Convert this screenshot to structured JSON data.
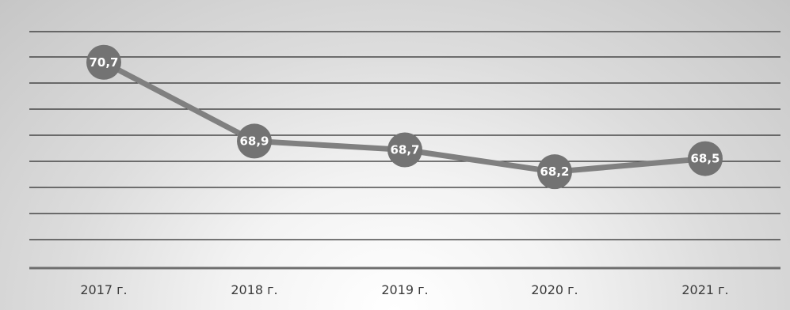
{
  "chart_data": {
    "type": "line",
    "categories": [
      "2017 г.",
      "2018 г.",
      "2019 г.",
      "2020 г.",
      "2021 г."
    ],
    "series": [
      {
        "values": [
          70.7,
          68.9,
          68.7,
          68.2,
          68.5
        ],
        "labels": [
          "70,7",
          "68,9",
          "68,7",
          "68,2",
          "68,5"
        ]
      }
    ],
    "title": "",
    "xlabel": "",
    "ylabel": "",
    "ylim": [
      66.0,
      71.4
    ],
    "grid": true,
    "legend": "none",
    "colors": {
      "line": "#808080",
      "marker": "#737373",
      "gridline": "#2a2a2a",
      "baseline": "#6e6e6e"
    }
  }
}
